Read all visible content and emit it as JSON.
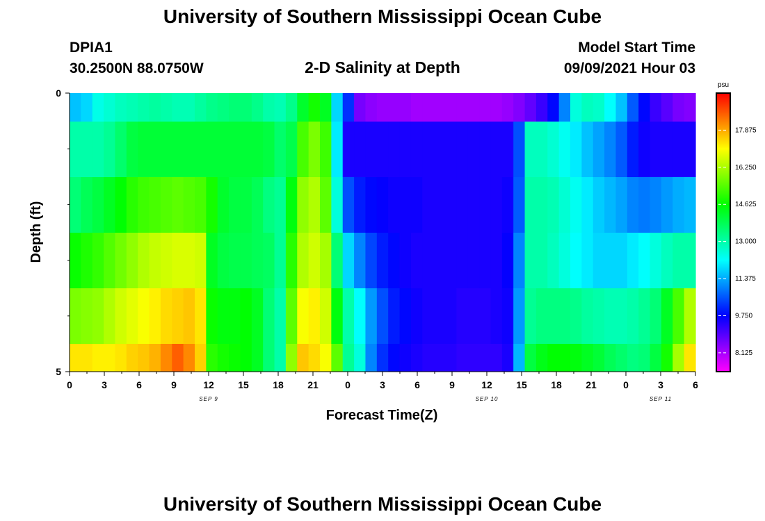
{
  "header": {
    "top_title": "University of Southern Mississippi Ocean Cube",
    "bottom_title": "University of Southern Mississippi Ocean Cube",
    "station_id": "DPIA1",
    "location": "30.2500N  88.0750W",
    "plot_title": "2-D Salinity at Depth",
    "model_start_label": "Model Start Time",
    "model_start_value": "09/09/2021 Hour 03"
  },
  "chart_data": {
    "type": "heatmap",
    "title": "2-D Salinity at Depth",
    "xlabel": "Forecast Time(Z)",
    "ylabel": "Depth (ft)",
    "x_tick_labels": [
      "0",
      "3",
      "6",
      "9",
      "12",
      "15",
      "18",
      "21",
      "0",
      "3",
      "6",
      "9",
      "12",
      "15",
      "18",
      "21",
      "0",
      "3",
      "6"
    ],
    "date_labels": [
      {
        "label": "SEP 9",
        "at_tick": 4
      },
      {
        "label": "SEP 10",
        "at_tick": 12
      },
      {
        "label": "SEP 11",
        "at_tick": 17
      }
    ],
    "y_tick_labels": [
      {
        "label": "0",
        "value": 0
      },
      {
        "label": "5",
        "value": 5
      }
    ],
    "ylim": [
      0,
      5
    ],
    "x_hours": [
      0,
      1,
      2,
      3,
      4,
      5,
      6,
      7,
      8,
      9,
      10,
      11,
      12,
      13,
      14,
      15,
      16,
      17,
      18,
      19,
      20,
      21,
      22,
      23,
      24,
      25,
      26,
      27,
      28,
      29,
      30,
      31,
      32,
      33,
      34,
      35,
      36,
      37,
      38,
      39,
      40,
      41,
      42,
      43,
      44,
      45,
      46,
      47,
      48,
      49,
      50,
      51,
      52,
      53,
      54
    ],
    "depth_rows": [
      {
        "depth": "0.0-0.5",
        "values": [
          11.6,
          11.8,
          12.4,
          12.6,
          12.8,
          12.9,
          13.0,
          13.1,
          13.0,
          12.9,
          12.9,
          13.1,
          13.3,
          13.4,
          13.5,
          13.5,
          13.3,
          13.0,
          12.9,
          13.3,
          14.2,
          14.8,
          14.3,
          11.8,
          10.2,
          8.6,
          8.4,
          8.3,
          8.3,
          8.3,
          8.2,
          8.2,
          8.2,
          8.2,
          8.2,
          8.2,
          8.2,
          8.2,
          8.3,
          8.5,
          8.8,
          9.2,
          9.8,
          11.0,
          12.5,
          12.8,
          12.7,
          12.2,
          11.6,
          10.6,
          9.8,
          9.2,
          8.9,
          8.6,
          8.5
        ]
      },
      {
        "depth": "0.5-1.5",
        "values": [
          13.0,
          13.0,
          13.0,
          13.2,
          13.6,
          14.0,
          14.1,
          14.1,
          14.1,
          14.1,
          14.1,
          14.1,
          14.1,
          14.1,
          14.1,
          14.1,
          14.1,
          14.0,
          13.6,
          13.9,
          15.3,
          15.8,
          15.2,
          12.0,
          9.5,
          9.5,
          9.5,
          9.5,
          9.5,
          9.5,
          9.5,
          9.5,
          9.5,
          9.5,
          9.5,
          9.5,
          9.5,
          9.5,
          9.5,
          10.5,
          12.8,
          12.8,
          12.6,
          12.3,
          12.0,
          11.6,
          11.3,
          11.0,
          10.6,
          10.0,
          9.6,
          9.5,
          9.5,
          9.5,
          9.5
        ]
      },
      {
        "depth": "1.5-2.5",
        "values": [
          13.5,
          13.8,
          14.0,
          14.3,
          14.6,
          15.0,
          15.2,
          15.3,
          15.4,
          15.5,
          15.4,
          15.3,
          14.8,
          14.2,
          14.0,
          14.0,
          13.8,
          13.4,
          13.2,
          14.5,
          16.0,
          16.3,
          15.5,
          12.5,
          10.5,
          10.0,
          9.8,
          9.7,
          9.6,
          9.6,
          9.6,
          9.5,
          9.5,
          9.5,
          9.5,
          9.5,
          9.5,
          9.5,
          9.6,
          10.6,
          13.0,
          13.0,
          12.9,
          12.6,
          12.3,
          12.0,
          11.7,
          11.5,
          11.3,
          11.0,
          10.9,
          11.0,
          11.2,
          11.4,
          11.5
        ]
      },
      {
        "depth": "2.5-3.5",
        "values": [
          14.7,
          14.9,
          15.1,
          15.4,
          15.7,
          16.0,
          16.3,
          16.5,
          16.6,
          16.7,
          16.7,
          16.6,
          14.3,
          14.0,
          13.9,
          13.9,
          13.8,
          13.7,
          13.2,
          15.0,
          16.3,
          16.6,
          16.2,
          13.5,
          11.8,
          11.0,
          10.4,
          10.0,
          9.8,
          9.6,
          9.5,
          9.5,
          9.5,
          9.5,
          9.5,
          9.5,
          9.5,
          9.5,
          9.7,
          11.0,
          13.0,
          13.0,
          12.8,
          12.5,
          12.2,
          12.0,
          11.8,
          11.8,
          11.8,
          12.0,
          12.2,
          12.5,
          12.8,
          13.0,
          13.0
        ]
      },
      {
        "depth": "3.5-4.5",
        "values": [
          15.8,
          15.9,
          16.0,
          16.3,
          16.6,
          16.8,
          17.0,
          17.2,
          17.4,
          17.5,
          17.6,
          17.3,
          14.7,
          14.5,
          14.5,
          14.6,
          14.3,
          13.5,
          13.0,
          15.5,
          17.0,
          17.2,
          16.6,
          14.5,
          13.0,
          12.2,
          11.2,
          10.5,
          10.0,
          9.8,
          9.6,
          9.5,
          9.5,
          9.5,
          9.4,
          9.4,
          9.4,
          9.5,
          9.6,
          11.2,
          13.2,
          13.4,
          13.4,
          13.4,
          13.3,
          13.1,
          13.0,
          12.9,
          12.9,
          13.0,
          13.2,
          13.5,
          14.3,
          15.3,
          16.3
        ]
      },
      {
        "depth": "4.5-5.0",
        "values": [
          17.3,
          17.3,
          17.2,
          17.2,
          17.3,
          17.5,
          17.6,
          17.8,
          18.2,
          18.6,
          18.2,
          17.5,
          15.0,
          14.8,
          14.7,
          14.6,
          14.3,
          13.5,
          13.0,
          16.0,
          17.6,
          17.4,
          17.0,
          15.5,
          13.2,
          12.5,
          11.0,
          10.2,
          9.8,
          9.6,
          9.5,
          9.4,
          9.4,
          9.4,
          9.3,
          9.3,
          9.3,
          9.3,
          9.5,
          11.5,
          14.0,
          14.4,
          14.6,
          14.6,
          14.5,
          14.3,
          14.1,
          13.8,
          13.6,
          13.4,
          13.5,
          14.0,
          14.8,
          16.2,
          17.3
        ]
      }
    ],
    "colorbar": {
      "unit": "psu",
      "min": 7.3,
      "max": 19.5,
      "tick_values": [
        8.125,
        9.75,
        11.375,
        13.0,
        14.625,
        16.25,
        17.875
      ],
      "tick_labels": [
        "8.125",
        "9.750",
        "11.375",
        "13.000",
        "14.625",
        "16.250",
        "17.875"
      ]
    }
  }
}
